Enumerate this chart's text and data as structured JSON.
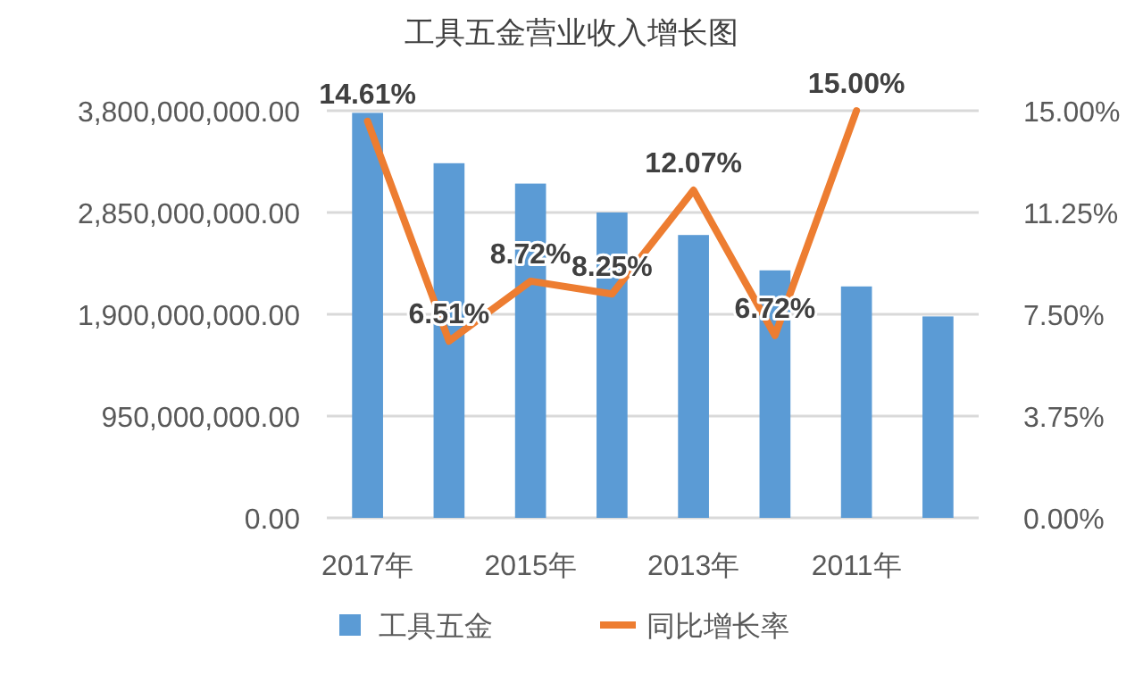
{
  "chart_data": {
    "type": "bar",
    "title": "工具五金营业收入增长图",
    "categories": [
      "2017年",
      null,
      "2015年",
      null,
      "2013年",
      null,
      "2011年",
      null
    ],
    "series": [
      {
        "name": "工具五金",
        "color": "#5b9bd5",
        "values": [
          3780000000,
          3310000000,
          3120000000,
          2850000000,
          2640000000,
          2310000000,
          2160000000,
          1880000000
        ]
      },
      {
        "name": "同比增长率",
        "type": "line",
        "axis": "y2",
        "color": "#ed7d31",
        "values": [
          14.61,
          6.51,
          8.72,
          8.25,
          12.07,
          6.72,
          15.0,
          null
        ],
        "value_labels": [
          "14.61%",
          "6.51%",
          "8.72%",
          "8.25%",
          "12.07%",
          "6.72%",
          "15.00%",
          null
        ]
      }
    ],
    "ylim": [
      0,
      3800000000
    ],
    "yticks": [
      {
        "value": 0,
        "label": "0.00"
      },
      {
        "value": 950000000,
        "label": "950,000,000.00"
      },
      {
        "value": 1900000000,
        "label": "1,900,000,000.00"
      },
      {
        "value": 2850000000,
        "label": "2,850,000,000.00"
      },
      {
        "value": 3800000000,
        "label": "3,800,000,000.00"
      }
    ],
    "y2lim": [
      0,
      15
    ],
    "y2ticks": [
      {
        "value": 0,
        "label": "0.00%"
      },
      {
        "value": 3.75,
        "label": "3.75%"
      },
      {
        "value": 7.5,
        "label": "7.50%"
      },
      {
        "value": 11.25,
        "label": "11.25%"
      },
      {
        "value": 15,
        "label": "15.00%"
      }
    ],
    "grid": "y",
    "legend": "bottom"
  }
}
